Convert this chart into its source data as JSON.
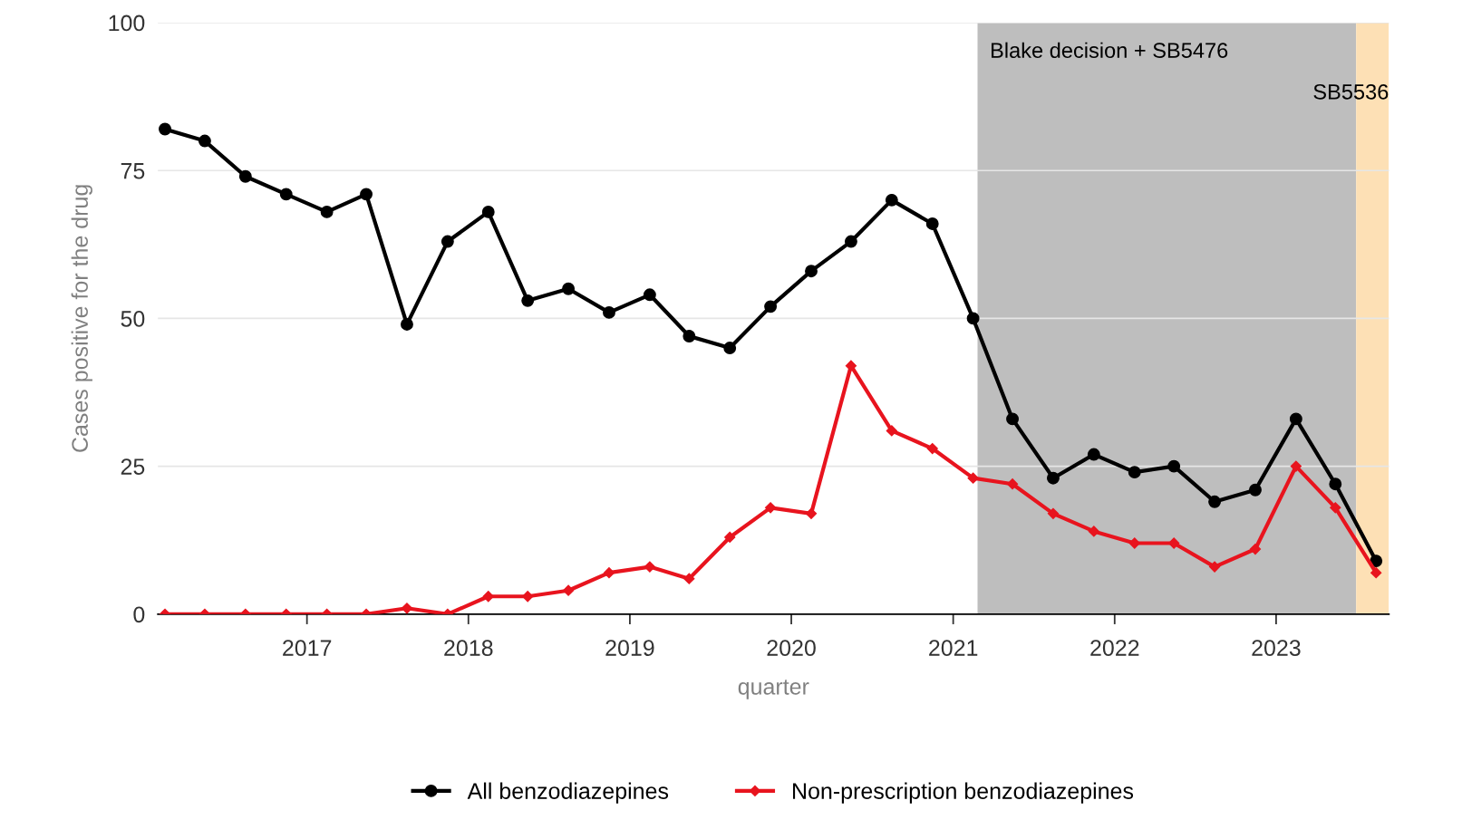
{
  "chart_data": {
    "type": "line",
    "xlabel": "quarter",
    "ylabel": "Cases positive for the drug",
    "x": [
      "2016-02-15",
      "2016-05-15",
      "2016-08-15",
      "2016-11-15",
      "2017-02-15",
      "2017-05-15",
      "2017-08-15",
      "2017-11-15",
      "2018-02-15",
      "2018-05-15",
      "2018-08-15",
      "2018-11-15",
      "2019-02-15",
      "2019-05-15",
      "2019-08-15",
      "2019-11-15",
      "2020-02-15",
      "2020-05-15",
      "2020-08-15",
      "2020-11-15",
      "2021-02-15",
      "2021-05-15",
      "2021-08-15",
      "2021-11-15",
      "2022-02-15",
      "2022-05-15",
      "2022-08-15",
      "2022-11-15",
      "2023-02-15",
      "2023-05-15",
      "2023-08-15"
    ],
    "series": [
      {
        "name": "All benzodiazepines",
        "color": "#000000",
        "marker": "circle",
        "values": [
          82,
          80,
          74,
          71,
          68,
          71,
          49,
          63,
          68,
          53,
          55,
          51,
          54,
          47,
          45,
          52,
          58,
          63,
          70,
          66,
          50,
          33,
          23,
          27,
          24,
          25,
          19,
          21,
          33,
          22,
          9
        ]
      },
      {
        "name": "Non-prescription benzodiazepines",
        "color": "#e8141e",
        "marker": "diamond",
        "values": [
          0,
          0,
          0,
          0,
          0,
          0,
          1,
          0,
          3,
          3,
          4,
          7,
          8,
          6,
          13,
          18,
          17,
          42,
          31,
          28,
          23,
          22,
          17,
          14,
          12,
          12,
          8,
          11,
          25,
          18,
          7
        ]
      }
    ],
    "xlim": [
      "2016-01-30",
      "2023-09-13"
    ],
    "xticks": [
      "2017",
      "2018",
      "2019",
      "2020",
      "2021",
      "2022",
      "2023"
    ],
    "ylim": [
      0,
      100
    ],
    "yticks": [
      0,
      25,
      50,
      75,
      100
    ],
    "bands": [
      {
        "axis": "x",
        "from": "2021-02-25",
        "to": "2023-07-01",
        "label": "Blake decision + SB5476",
        "color": "#bebebe"
      },
      {
        "axis": "x",
        "from": "2023-07-01",
        "to": "2023-09-13",
        "label": "SB5536",
        "color": "#fde0b5"
      }
    ],
    "grid": "y",
    "legend": "bottom",
    "line_style": "solid"
  }
}
